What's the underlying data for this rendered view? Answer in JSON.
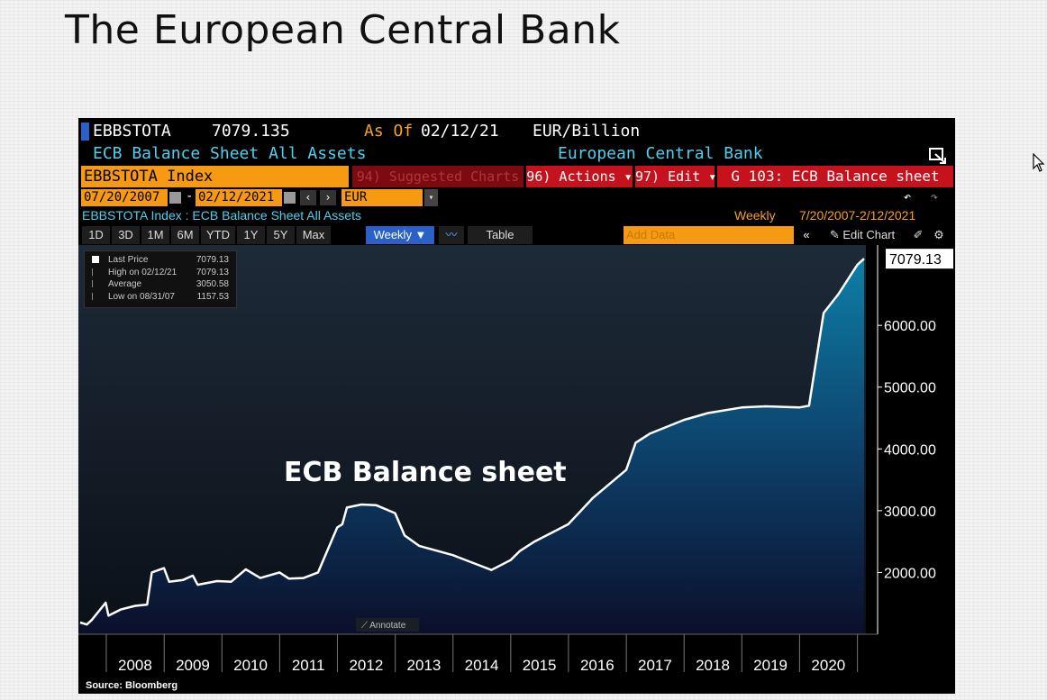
{
  "slide": {
    "title": "The European Central Bank"
  },
  "terminal": {
    "ticker": "EBBSTOTA",
    "last_value": "7079.135",
    "as_of_label": "As Of",
    "as_of_date": "02/12/21",
    "unit": "EUR/Billion",
    "description": "ECB Balance Sheet All Assets",
    "source_org": "European Central Bank",
    "index_field": "EBBSTOTA Index",
    "menu": {
      "suggested": "94) Suggested Charts",
      "actions": "96) Actions ▾",
      "edit": "97) Edit ▾",
      "graph": "G 103: ECB Balance sheet"
    },
    "date_start": "07/20/2007",
    "date_end": "02/12/2021",
    "dash": "-",
    "currency": "EUR",
    "series_line": "EBBSTOTA Index : ECB Balance Sheet All Assets",
    "frequency": "Weekly",
    "range_text": "7/20/2007-2/12/2021",
    "periods": [
      "1D",
      "3D",
      "1M",
      "6M",
      "YTD",
      "1Y",
      "5Y",
      "Max"
    ],
    "weekly_select": "Weekly ▼",
    "table_label": "Table",
    "add_data_placeholder": "Add Data",
    "edit_chart": "Edit Chart",
    "annotate": "Annotate",
    "source": "Source: Bloomberg"
  },
  "legend": {
    "rows": [
      {
        "label": "Last Price",
        "value": "7079.13"
      },
      {
        "label": "High on 02/12/21",
        "value": "7079.13"
      },
      {
        "label": "Average",
        "value": "3050.58"
      },
      {
        "label": "Low on 08/31/07",
        "value": "1157.53"
      }
    ]
  },
  "colors": {
    "line": "#ffffff",
    "fill_top": "#0d7fa8",
    "fill_bottom": "#0b0f2a",
    "orange": "#f7a21a",
    "cyan": "#4fd0f0",
    "menu_red": "#c5121c"
  },
  "chart_data": {
    "type": "area",
    "title": "ECB Balance sheet",
    "annotation": "ECB Balance sheet",
    "xlabel": "",
    "ylabel": "",
    "last_label": "7079.13",
    "x_ticks": [
      "2008",
      "2009",
      "2010",
      "2011",
      "2012",
      "2013",
      "2014",
      "2015",
      "2016",
      "2017",
      "2018",
      "2019",
      "2020"
    ],
    "y_ticks": [
      "2000.00",
      "3000.00",
      "4000.00",
      "5000.00",
      "6000.00"
    ],
    "y_tick_values": [
      2000,
      3000,
      4000,
      5000,
      6000
    ],
    "ylim": [
      1000,
      7300
    ],
    "xlim": [
      "2007-07-20",
      "2021-02-12"
    ],
    "series": [
      {
        "values": [
          [
            "2007-07-20",
            1190
          ],
          [
            "2007-08-31",
            1157.53
          ],
          [
            "2007-10-01",
            1230
          ],
          [
            "2007-12-28",
            1510
          ],
          [
            "2008-01-15",
            1300
          ],
          [
            "2008-04-01",
            1400
          ],
          [
            "2008-07-01",
            1460
          ],
          [
            "2008-09-15",
            1480
          ],
          [
            "2008-10-15",
            2000
          ],
          [
            "2008-12-31",
            2070
          ],
          [
            "2009-02-01",
            1850
          ],
          [
            "2009-05-01",
            1880
          ],
          [
            "2009-07-01",
            1950
          ],
          [
            "2009-08-01",
            1800
          ],
          [
            "2009-12-01",
            1860
          ],
          [
            "2010-03-01",
            1850
          ],
          [
            "2010-06-01",
            2050
          ],
          [
            "2010-09-01",
            1910
          ],
          [
            "2010-12-31",
            2000
          ],
          [
            "2011-03-01",
            1900
          ],
          [
            "2011-06-01",
            1910
          ],
          [
            "2011-09-01",
            2000
          ],
          [
            "2011-12-31",
            2730
          ],
          [
            "2012-02-01",
            2780
          ],
          [
            "2012-03-01",
            3050
          ],
          [
            "2012-06-01",
            3100
          ],
          [
            "2012-09-01",
            3090
          ],
          [
            "2012-12-31",
            2960
          ],
          [
            "2013-03-01",
            2600
          ],
          [
            "2013-06-01",
            2430
          ],
          [
            "2013-12-31",
            2280
          ],
          [
            "2014-06-01",
            2130
          ],
          [
            "2014-09-01",
            2040
          ],
          [
            "2014-12-31",
            2200
          ],
          [
            "2015-03-01",
            2350
          ],
          [
            "2015-06-01",
            2500
          ],
          [
            "2015-12-31",
            2780
          ],
          [
            "2016-06-01",
            3200
          ],
          [
            "2016-12-31",
            3660
          ],
          [
            "2017-03-01",
            4100
          ],
          [
            "2017-06-01",
            4250
          ],
          [
            "2017-12-31",
            4470
          ],
          [
            "2018-06-01",
            4580
          ],
          [
            "2018-12-31",
            4670
          ],
          [
            "2019-06-01",
            4690
          ],
          [
            "2019-12-31",
            4670
          ],
          [
            "2020-03-01",
            4700
          ],
          [
            "2020-06-01",
            6200
          ],
          [
            "2020-09-01",
            6500
          ],
          [
            "2020-12-31",
            6980
          ],
          [
            "2021-02-12",
            7079.13
          ]
        ]
      }
    ]
  }
}
